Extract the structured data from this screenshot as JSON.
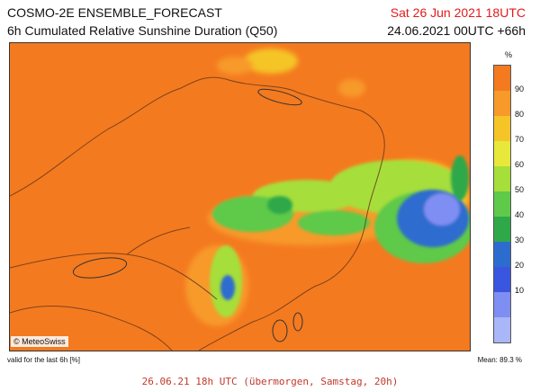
{
  "header": {
    "title": "COSMO-2E ENSEMBLE_FORECAST",
    "subtitle": "6h Cumulated Relative Sunshine Duration (Q50)",
    "valid_time": "Sat 26 Jun 2021 18UTC",
    "run_time": "24.06.2021 00UTC +66h"
  },
  "map": {
    "copyright": "© MeteoSwiss",
    "background_color": "#f47a1f"
  },
  "colorbar": {
    "unit": "%",
    "ticks": [
      "90",
      "80",
      "70",
      "60",
      "50",
      "40",
      "30",
      "20",
      "10"
    ],
    "colors": [
      "#f47a1f",
      "#f79a2a",
      "#f5c528",
      "#e8e83a",
      "#a6de3a",
      "#5fc94a",
      "#2fa84a",
      "#2d6ccf",
      "#3a55e0",
      "#7f8ef2",
      "#a9b6f7"
    ]
  },
  "footer": {
    "valid_note": "valid for the last 6h [%]",
    "mean_note": "Mean: 89.3 %",
    "local_time": "26.06.21 18h UTC (übermorgen, Samstag, 20h)"
  }
}
